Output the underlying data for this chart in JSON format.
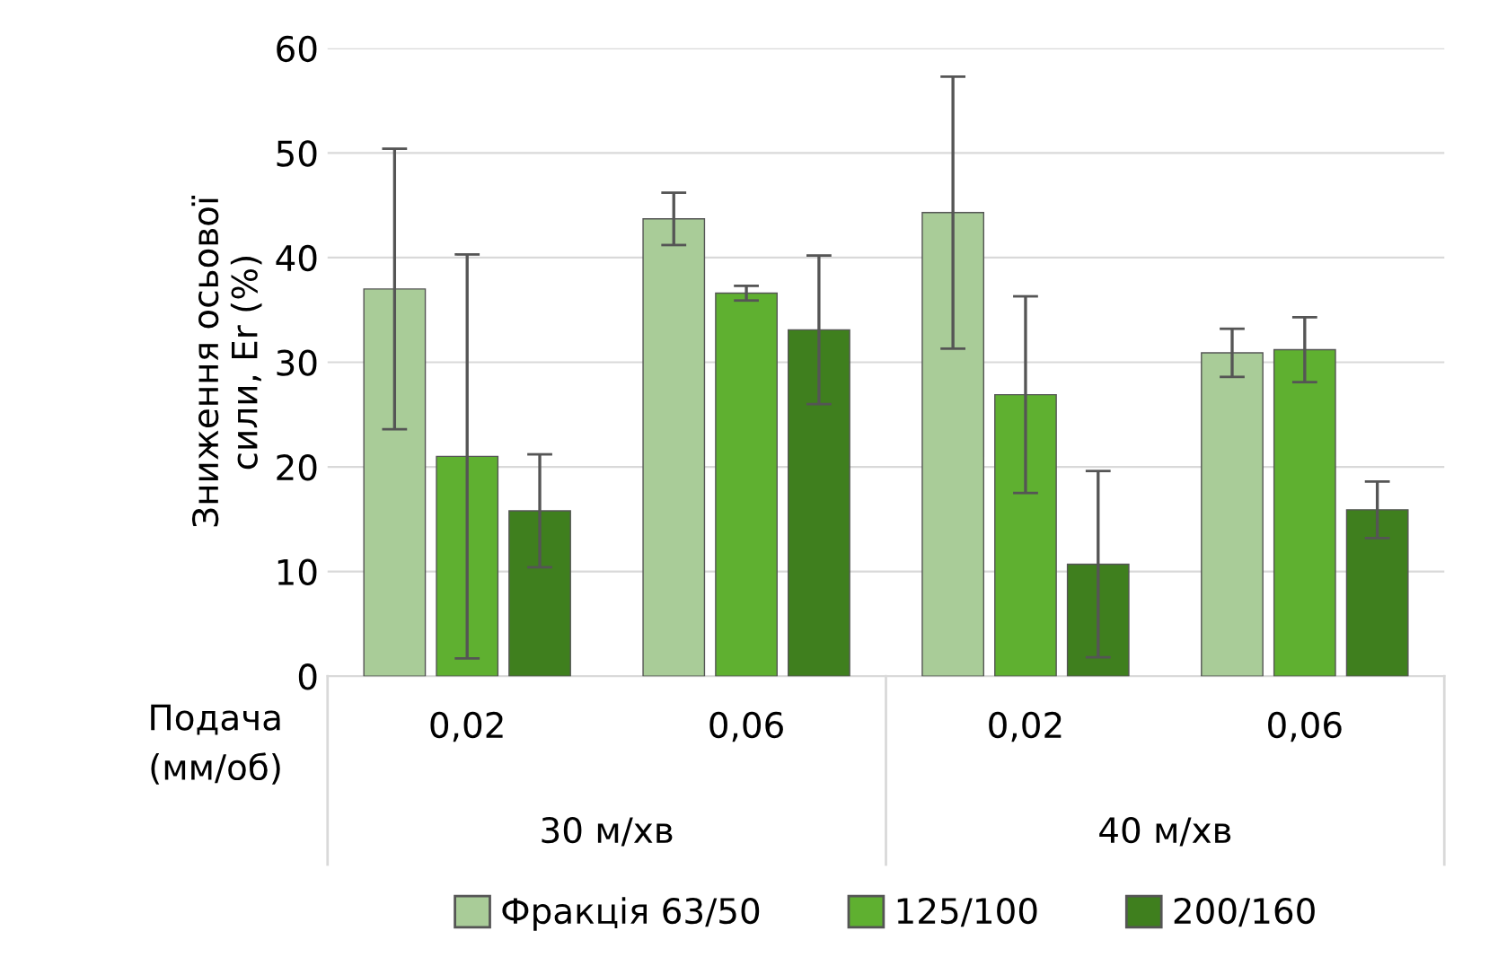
{
  "chart_data": {
    "type": "bar",
    "ylabel": "Зниження осьової\nсили, Er (%)",
    "xlabel": "Подача\n(мм/об)",
    "categories": [
      "0,02",
      "0,06",
      "0,02",
      "0,06"
    ],
    "annotations": [
      "30 м/хв",
      "40 м/хв"
    ],
    "series": [
      {
        "name": "Фракція 63/50",
        "color": "#a9cc98",
        "values": [
          37,
          43.7,
          44.3,
          30.9
        ],
        "errors": [
          13.4,
          2.5,
          13,
          2.3
        ]
      },
      {
        "name": "125/100",
        "color": "#5fb030",
        "values": [
          21,
          36.6,
          26.9,
          31.2
        ],
        "errors": [
          19.3,
          0.7,
          9.4,
          3.1
        ]
      },
      {
        "name": "200/160",
        "color": "#3f7f1e",
        "values": [
          15.8,
          33.1,
          10.7,
          15.9
        ],
        "errors": [
          5.4,
          7.1,
          8.9,
          2.7
        ]
      }
    ],
    "ylim": [
      0,
      60
    ],
    "yticks": [
      0,
      10,
      20,
      30,
      40,
      50,
      60
    ],
    "grid": "y",
    "legend": "bottom"
  }
}
